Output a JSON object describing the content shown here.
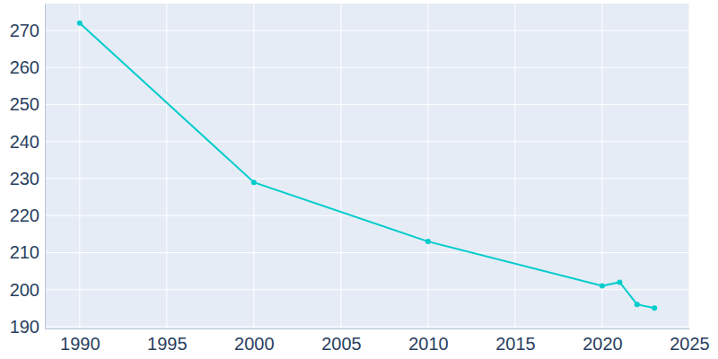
{
  "chart_data": {
    "type": "line",
    "x": [
      1990,
      2000,
      2010,
      2020,
      2021,
      2022,
      2023
    ],
    "values": [
      272,
      229,
      213,
      201,
      202,
      196,
      195
    ],
    "color": "#00cccc",
    "marker": "circle",
    "xlim": [
      1988,
      2025
    ],
    "xticks": [
      1990,
      1995,
      2000,
      2005,
      2010,
      2015,
      2020,
      2025
    ],
    "ylim": [
      189.5,
      277.3
    ],
    "yticks": [
      190,
      200,
      210,
      220,
      230,
      240,
      250,
      260,
      270
    ],
    "grid": true
  }
}
